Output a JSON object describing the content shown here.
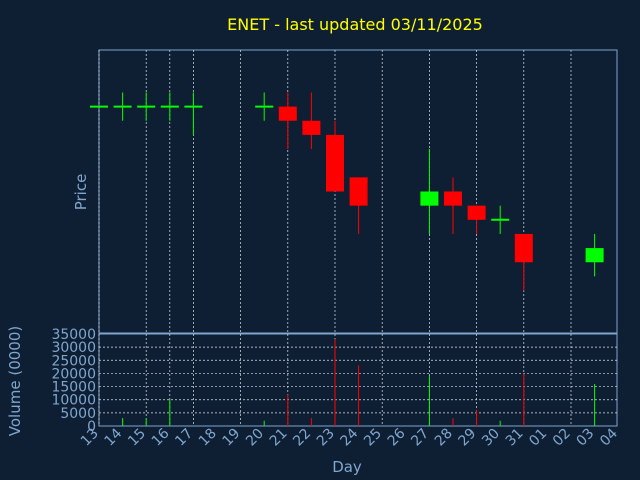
{
  "chart_data": {
    "type": "candlestick",
    "title": "ENET - last updated 03/11/2025",
    "xlabel": "Day",
    "ylabel_price": "Price",
    "ylabel_volume": "Volume (0000)",
    "x_ticks": [
      "13",
      "14",
      "15",
      "16",
      "17",
      "18",
      "19",
      "20",
      "21",
      "22",
      "23",
      "24",
      "25",
      "26",
      "27",
      "28",
      "29",
      "30",
      "31",
      "01",
      "02",
      "03",
      "04"
    ],
    "price_ylim": [
      0.8,
      6.8
    ],
    "volume_ylim": [
      0,
      35000
    ],
    "volume_ticks": [
      0,
      5000,
      10000,
      15000,
      20000,
      25000,
      30000,
      35000
    ],
    "grid": true,
    "up_color": "#00ff00",
    "down_color": "#ff0000",
    "candles": [
      {
        "day": "13",
        "open": 5.6,
        "high": 5.6,
        "low": 5.6,
        "close": 5.6,
        "volume": 0
      },
      {
        "day": "14",
        "open": 5.6,
        "high": 5.9,
        "low": 5.3,
        "close": 5.6,
        "volume": 3000
      },
      {
        "day": "15",
        "open": 5.6,
        "high": 5.9,
        "low": 5.3,
        "close": 5.6,
        "volume": 3000
      },
      {
        "day": "16",
        "open": 5.6,
        "high": 5.9,
        "low": 5.3,
        "close": 5.6,
        "volume": 10000
      },
      {
        "day": "17",
        "open": 5.6,
        "high": 5.9,
        "low": 5.0,
        "close": 5.6,
        "volume": 0
      },
      {
        "day": "20",
        "open": 5.6,
        "high": 5.9,
        "low": 5.3,
        "close": 5.6,
        "volume": 2000
      },
      {
        "day": "21",
        "open": 5.6,
        "high": 5.9,
        "low": 4.7,
        "close": 5.3,
        "volume": 12000
      },
      {
        "day": "22",
        "open": 5.3,
        "high": 5.9,
        "low": 4.7,
        "close": 5.0,
        "volume": 3000
      },
      {
        "day": "23",
        "open": 5.0,
        "high": 5.3,
        "low": 3.8,
        "close": 3.8,
        "volume": 33000
      },
      {
        "day": "24",
        "open": 4.1,
        "high": 4.1,
        "low": 2.9,
        "close": 3.5,
        "volume": 23000
      },
      {
        "day": "27",
        "open": 3.5,
        "high": 4.7,
        "low": 2.9,
        "close": 3.8,
        "volume": 19000
      },
      {
        "day": "28",
        "open": 3.8,
        "high": 4.1,
        "low": 2.9,
        "close": 3.5,
        "volume": 3000
      },
      {
        "day": "29",
        "open": 3.5,
        "high": 3.5,
        "low": 2.9,
        "close": 3.2,
        "volume": 6000
      },
      {
        "day": "30",
        "open": 3.2,
        "high": 3.5,
        "low": 2.9,
        "close": 3.2,
        "volume": 2000
      },
      {
        "day": "31",
        "open": 2.9,
        "high": 2.9,
        "low": 1.7,
        "close": 2.3,
        "volume": 20000
      },
      {
        "day": "03",
        "open": 2.3,
        "high": 2.9,
        "low": 2.0,
        "close": 2.6,
        "volume": 16000
      }
    ]
  }
}
